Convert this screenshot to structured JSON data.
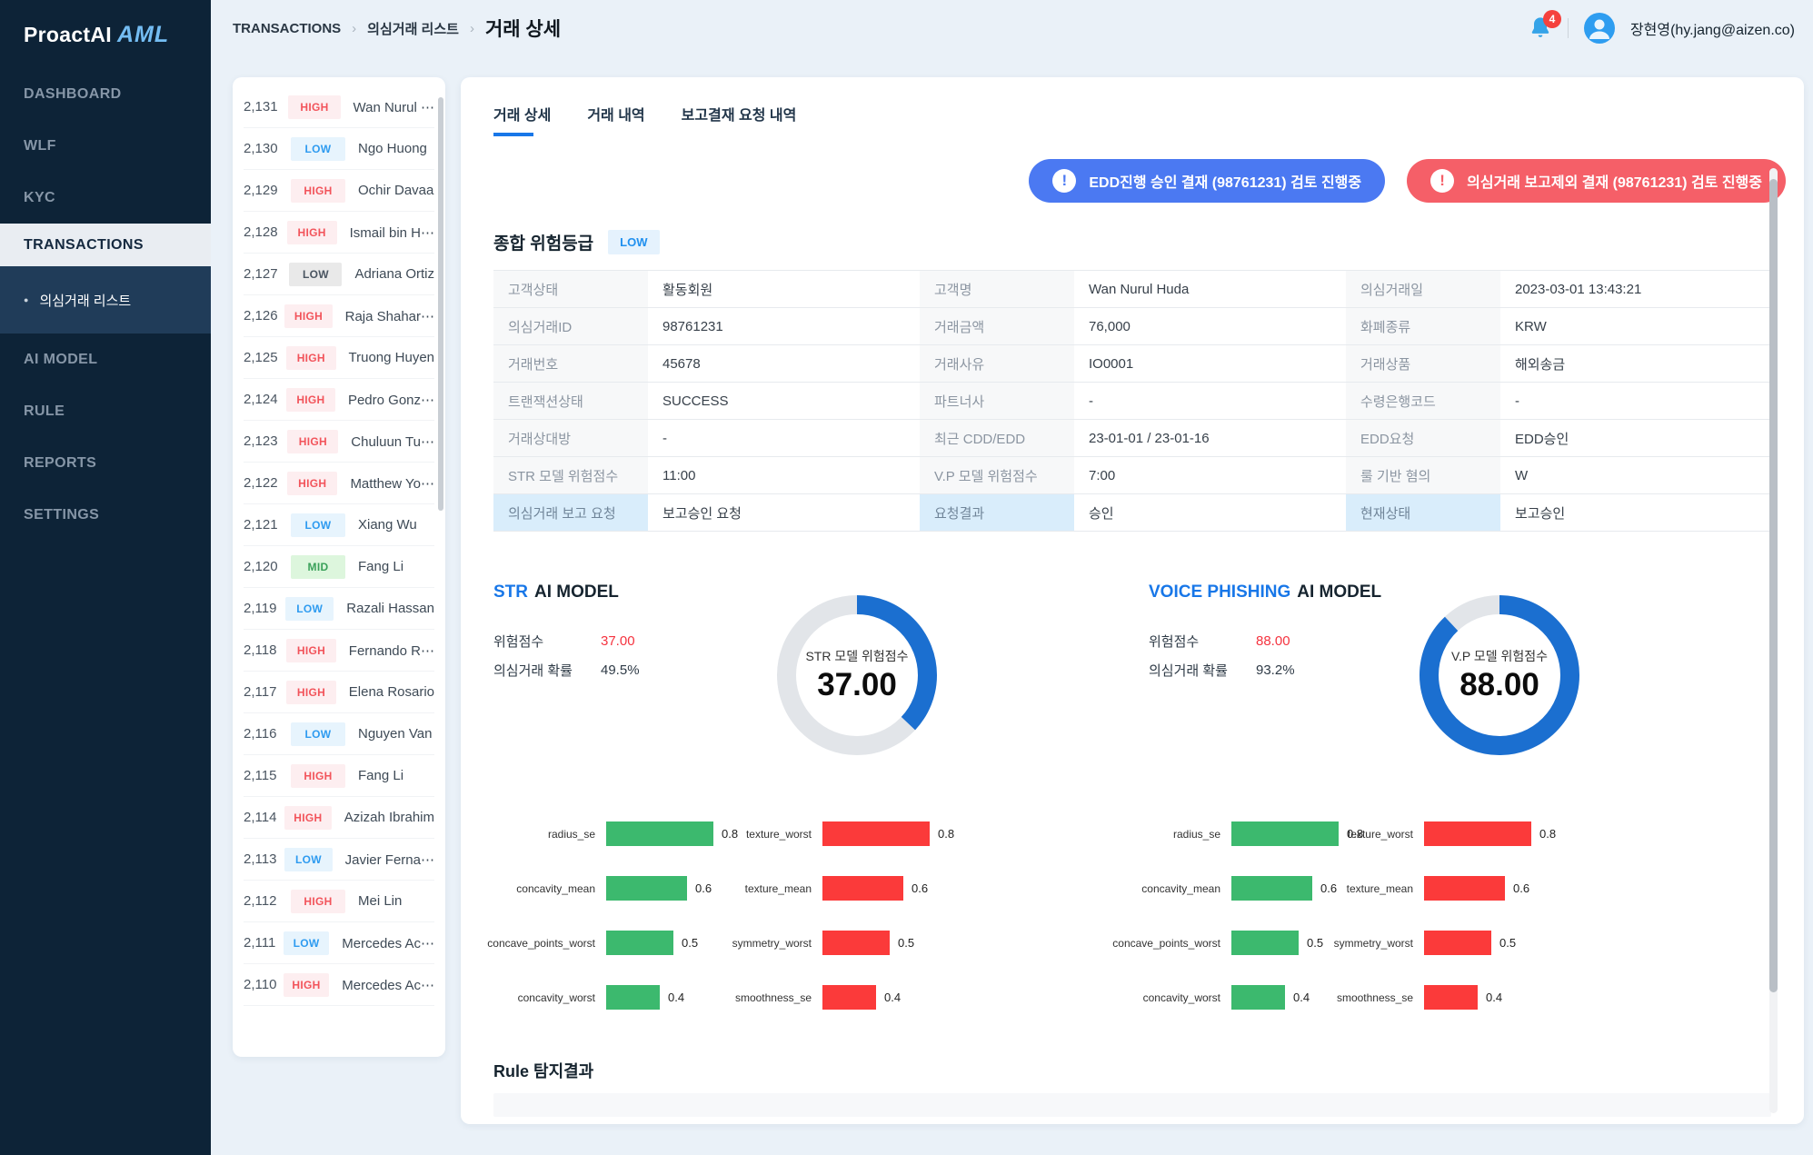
{
  "app": {
    "logo_primary": "ProactAI",
    "logo_accent": "AML"
  },
  "icons": {
    "breadcrumb_separator": "›",
    "sub_item_bullet": "●",
    "alert_icon": "!"
  },
  "colors": {
    "accent_blue": "#1877e8",
    "donut_blue": "#1b6fd0",
    "donut_track": "#e2e5e9",
    "alert_blue": "#4b79f2",
    "alert_red": "#f55f68",
    "bar_green": "#3cb96e",
    "bar_red": "#fb3a3a"
  },
  "sidebar": {
    "items": [
      {
        "label": "DASHBOARD",
        "active": false
      },
      {
        "label": "WLF",
        "active": false
      },
      {
        "label": "KYC",
        "active": false
      },
      {
        "label": "TRANSACTIONS",
        "active": true,
        "sub": "의심거래 리스트"
      },
      {
        "label": "AI MODEL",
        "active": false
      },
      {
        "label": "RULE",
        "active": false
      },
      {
        "label": "REPORTS",
        "active": false
      },
      {
        "label": "SETTINGS",
        "active": false
      }
    ]
  },
  "topbar": {
    "breadcrumb": [
      "TRANSACTIONS",
      "의심거래 리스트",
      "거래 상세"
    ],
    "notification_count": "4",
    "user": "장현영(hy.jang@aizen.co)"
  },
  "transaction_list": {
    "rows": [
      {
        "id": "2,131",
        "level": "HIGH",
        "name": "Wan Nurul ⋯"
      },
      {
        "id": "2,130",
        "level": "LOW",
        "name": "Ngo Huong"
      },
      {
        "id": "2,129",
        "level": "HIGH",
        "name": "Ochir Davaa"
      },
      {
        "id": "2,128",
        "level": "HIGH",
        "name": "Ismail bin H⋯"
      },
      {
        "id": "2,127",
        "level": "LOW",
        "name": "Adriana Ortiz",
        "muted": true
      },
      {
        "id": "2,126",
        "level": "HIGH",
        "name": "Raja Shahar⋯"
      },
      {
        "id": "2,125",
        "level": "HIGH",
        "name": "Truong Huyen"
      },
      {
        "id": "2,124",
        "level": "HIGH",
        "name": "Pedro Gonz⋯"
      },
      {
        "id": "2,123",
        "level": "HIGH",
        "name": "Chuluun Tu⋯"
      },
      {
        "id": "2,122",
        "level": "HIGH",
        "name": "Matthew Yo⋯"
      },
      {
        "id": "2,121",
        "level": "LOW",
        "name": "Xiang Wu"
      },
      {
        "id": "2,120",
        "level": "MID",
        "name": "Fang Li"
      },
      {
        "id": "2,119",
        "level": "LOW",
        "name": "Razali Hassan"
      },
      {
        "id": "2,118",
        "level": "HIGH",
        "name": "Fernando R⋯"
      },
      {
        "id": "2,117",
        "level": "HIGH",
        "name": "Elena Rosario"
      },
      {
        "id": "2,116",
        "level": "LOW",
        "name": "Nguyen Van"
      },
      {
        "id": "2,115",
        "level": "HIGH",
        "name": "Fang Li"
      },
      {
        "id": "2,114",
        "level": "HIGH",
        "name": "Azizah Ibrahim"
      },
      {
        "id": "2,113",
        "level": "LOW",
        "name": "Javier Ferna⋯"
      },
      {
        "id": "2,112",
        "level": "HIGH",
        "name": "Mei Lin"
      },
      {
        "id": "2,111",
        "level": "LOW",
        "name": "Mercedes Ac⋯"
      },
      {
        "id": "2,110",
        "level": "HIGH",
        "name": "Mercedes Ac⋯"
      }
    ]
  },
  "detail": {
    "tabs": [
      {
        "label": "거래 상세",
        "active": true
      },
      {
        "label": "거래 내역",
        "active": false
      },
      {
        "label": "보고결재 요청 내역",
        "active": false
      }
    ],
    "alerts": [
      {
        "color": "blue",
        "text": "EDD진행 승인 결재 (98761231) 검토 진행중"
      },
      {
        "color": "red",
        "text": "의심거래 보고제외 결재 (98761231) 검토 진행중"
      }
    ],
    "risk_grade": {
      "label": "종합 위험등급",
      "badge": "LOW"
    },
    "info_table": {
      "rows": [
        {
          "highlight": false,
          "cells": [
            {
              "label": "고객상태",
              "value": "활동회원"
            },
            {
              "label": "고객명",
              "value": "Wan Nurul Huda"
            },
            {
              "label": "의심거래일",
              "value": "2023-03-01 13:43:21"
            }
          ]
        },
        {
          "highlight": false,
          "cells": [
            {
              "label": "의심거래ID",
              "value": "98761231"
            },
            {
              "label": "거래금액",
              "value": "76,000"
            },
            {
              "label": "화폐종류",
              "value": "KRW"
            }
          ]
        },
        {
          "highlight": false,
          "cells": [
            {
              "label": "거래번호",
              "value": "45678"
            },
            {
              "label": "거래사유",
              "value": "IO0001"
            },
            {
              "label": "거래상품",
              "value": "해외송금"
            }
          ]
        },
        {
          "highlight": false,
          "cells": [
            {
              "label": "트랜잭션상태",
              "value": "SUCCESS"
            },
            {
              "label": "파트너사",
              "value": "-"
            },
            {
              "label": "수령은행코드",
              "value": "-"
            }
          ]
        },
        {
          "highlight": false,
          "cells": [
            {
              "label": "거래상대방",
              "value": "-"
            },
            {
              "label": "최근 CDD/EDD",
              "value": "23-01-01 / 23-01-16"
            },
            {
              "label": "EDD요청",
              "value": "EDD승인"
            }
          ]
        },
        {
          "highlight": false,
          "cells": [
            {
              "label": "STR 모델 위험점수",
              "value": "11:00"
            },
            {
              "label": "V.P 모델 위험점수",
              "value": "7:00"
            },
            {
              "label": "룰 기반 혐의",
              "value": "W"
            }
          ]
        },
        {
          "highlight": true,
          "cells": [
            {
              "label": "의심거래 보고 요청",
              "value": "보고승인 요청"
            },
            {
              "label": "요청결과",
              "value": "승인"
            },
            {
              "label": "현재상태",
              "value": "보고승인"
            }
          ]
        }
      ]
    },
    "ai_models": [
      {
        "title_accent": "STR",
        "title_rest": "AI MODEL",
        "score_label": "위험점수",
        "score": "37.00",
        "prob_label": "의심거래 확률",
        "prob": "49.5%"
      },
      {
        "title_accent": "VOICE PHISHING",
        "title_rest": "AI MODEL",
        "score_label": "위험점수",
        "score": "88.00",
        "prob_label": "의심거래 확률",
        "prob": "93.2%"
      }
    ],
    "rule_section": {
      "title": "Rule 탐지결과"
    }
  },
  "chart_data": [
    {
      "type": "donut",
      "model": "STR",
      "title": "STR 모델 위험점수",
      "value": 37.0,
      "display": "37.00",
      "max": 100
    },
    {
      "type": "donut",
      "model": "VOICE PHISHING",
      "title": "V.P 모델 위험점수",
      "value": 88.0,
      "display": "88.00",
      "max": 100
    },
    {
      "type": "bar",
      "model": "STR",
      "series": "positive",
      "color": "#3cb96e",
      "categories": [
        "radius_se",
        "concavity_mean",
        "concave_points_worst",
        "concavity_worst"
      ],
      "values": [
        0.8,
        0.6,
        0.5,
        0.4
      ],
      "xlim": [
        0,
        1
      ]
    },
    {
      "type": "bar",
      "model": "STR",
      "series": "negative",
      "color": "#fb3a3a",
      "categories": [
        "texture_worst",
        "texture_mean",
        "symmetry_worst",
        "smoothness_se"
      ],
      "values": [
        0.8,
        0.6,
        0.5,
        0.4
      ],
      "xlim": [
        0,
        1
      ]
    },
    {
      "type": "bar",
      "model": "VOICE PHISHING",
      "series": "positive",
      "color": "#3cb96e",
      "categories": [
        "radius_se",
        "concavity_mean",
        "concave_points_worst",
        "concavity_worst"
      ],
      "values": [
        0.8,
        0.6,
        0.5,
        0.4
      ],
      "xlim": [
        0,
        1
      ]
    },
    {
      "type": "bar",
      "model": "VOICE PHISHING",
      "series": "negative",
      "color": "#fb3a3a",
      "categories": [
        "texture_worst",
        "texture_mean",
        "symmetry_worst",
        "smoothness_se"
      ],
      "values": [
        0.8,
        0.6,
        0.5,
        0.4
      ],
      "xlim": [
        0,
        1
      ]
    }
  ]
}
